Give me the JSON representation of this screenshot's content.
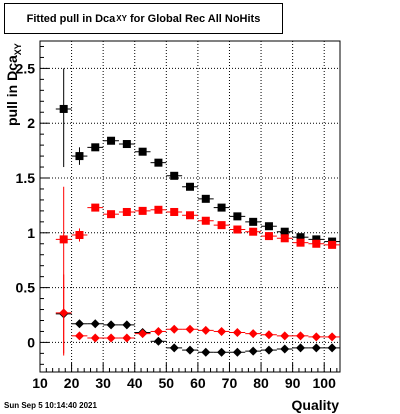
{
  "title": {
    "prefix": "Fitted pull in Dca",
    "subscript": "XY",
    "suffix": "for Global Rec All NoHits"
  },
  "y_axis_label": {
    "main": "pull in Dca",
    "subscript": "XY"
  },
  "x_axis_label": "Quality",
  "date_stamp": "Sun Sep  5 10:14:40 2021",
  "chart_data": {
    "type": "scatter",
    "xlim": [
      10,
      105
    ],
    "ylim": [
      -0.27,
      2.75
    ],
    "x_ticks": [
      10,
      20,
      30,
      40,
      50,
      60,
      70,
      80,
      90,
      100
    ],
    "y_ticks": [
      0,
      0.5,
      1,
      1.5,
      2,
      2.5
    ],
    "y_tick_labels": [
      "0",
      "0.5",
      "1",
      "1.5",
      "2",
      "2.5"
    ],
    "grid": true,
    "series": [
      {
        "marker": "square",
        "color": "#000000",
        "points": [
          {
            "x": 17.5,
            "y": 2.13,
            "err_lo": 1.6,
            "err_hi": 2.5
          },
          {
            "x": 22.5,
            "y": 1.7,
            "err_lo": 1.62,
            "err_hi": 1.78
          },
          {
            "x": 27.5,
            "y": 1.78
          },
          {
            "x": 32.5,
            "y": 1.84
          },
          {
            "x": 37.5,
            "y": 1.81
          },
          {
            "x": 42.5,
            "y": 1.74
          },
          {
            "x": 47.5,
            "y": 1.64
          },
          {
            "x": 52.5,
            "y": 1.52
          },
          {
            "x": 57.5,
            "y": 1.42
          },
          {
            "x": 62.5,
            "y": 1.31
          },
          {
            "x": 67.5,
            "y": 1.23
          },
          {
            "x": 72.5,
            "y": 1.15
          },
          {
            "x": 77.5,
            "y": 1.1
          },
          {
            "x": 82.5,
            "y": 1.06
          },
          {
            "x": 87.5,
            "y": 1.01
          },
          {
            "x": 92.5,
            "y": 0.96
          },
          {
            "x": 97.5,
            "y": 0.94
          },
          {
            "x": 102.5,
            "y": 0.92
          }
        ]
      },
      {
        "marker": "square",
        "color": "#ff0000",
        "points": [
          {
            "x": 17.5,
            "y": 0.94,
            "err_lo": -0.1,
            "err_hi": 1.42
          },
          {
            "x": 22.5,
            "y": 0.98,
            "err_lo": 0.92,
            "err_hi": 1.04
          },
          {
            "x": 27.5,
            "y": 1.23
          },
          {
            "x": 32.5,
            "y": 1.17
          },
          {
            "x": 37.5,
            "y": 1.19
          },
          {
            "x": 42.5,
            "y": 1.2
          },
          {
            "x": 47.5,
            "y": 1.21
          },
          {
            "x": 52.5,
            "y": 1.19
          },
          {
            "x": 57.5,
            "y": 1.16
          },
          {
            "x": 62.5,
            "y": 1.11
          },
          {
            "x": 67.5,
            "y": 1.07
          },
          {
            "x": 72.5,
            "y": 1.03
          },
          {
            "x": 77.5,
            "y": 1.01
          },
          {
            "x": 82.5,
            "y": 0.97
          },
          {
            "x": 87.5,
            "y": 0.95
          },
          {
            "x": 92.5,
            "y": 0.91
          },
          {
            "x": 97.5,
            "y": 0.9
          },
          {
            "x": 102.5,
            "y": 0.89
          }
        ]
      },
      {
        "marker": "diamond",
        "color": "#000000",
        "points": [
          {
            "x": 17.5,
            "y": 0.26
          },
          {
            "x": 22.5,
            "y": 0.17
          },
          {
            "x": 27.5,
            "y": 0.17
          },
          {
            "x": 32.5,
            "y": 0.16
          },
          {
            "x": 37.5,
            "y": 0.16
          },
          {
            "x": 42.5,
            "y": 0.09
          },
          {
            "x": 47.5,
            "y": 0.01
          },
          {
            "x": 52.5,
            "y": -0.05
          },
          {
            "x": 57.5,
            "y": -0.07
          },
          {
            "x": 62.5,
            "y": -0.09
          },
          {
            "x": 67.5,
            "y": -0.09
          },
          {
            "x": 72.5,
            "y": -0.09
          },
          {
            "x": 77.5,
            "y": -0.08
          },
          {
            "x": 82.5,
            "y": -0.07
          },
          {
            "x": 87.5,
            "y": -0.06
          },
          {
            "x": 92.5,
            "y": -0.05
          },
          {
            "x": 97.5,
            "y": -0.05
          },
          {
            "x": 102.5,
            "y": -0.05
          }
        ]
      },
      {
        "marker": "diamond",
        "color": "#ff0000",
        "points": [
          {
            "x": 17.5,
            "y": 0.27,
            "err_lo": -0.12,
            "err_hi": 0.62
          },
          {
            "x": 22.5,
            "y": 0.06
          },
          {
            "x": 27.5,
            "y": 0.04
          },
          {
            "x": 32.5,
            "y": 0.04
          },
          {
            "x": 37.5,
            "y": 0.04
          },
          {
            "x": 42.5,
            "y": 0.08
          },
          {
            "x": 47.5,
            "y": 0.1
          },
          {
            "x": 52.5,
            "y": 0.12
          },
          {
            "x": 57.5,
            "y": 0.12
          },
          {
            "x": 62.5,
            "y": 0.11
          },
          {
            "x": 67.5,
            "y": 0.1
          },
          {
            "x": 72.5,
            "y": 0.09
          },
          {
            "x": 77.5,
            "y": 0.08
          },
          {
            "x": 82.5,
            "y": 0.07
          },
          {
            "x": 87.5,
            "y": 0.06
          },
          {
            "x": 92.5,
            "y": 0.06
          },
          {
            "x": 97.5,
            "y": 0.05
          },
          {
            "x": 102.5,
            "y": 0.05
          }
        ]
      }
    ]
  }
}
